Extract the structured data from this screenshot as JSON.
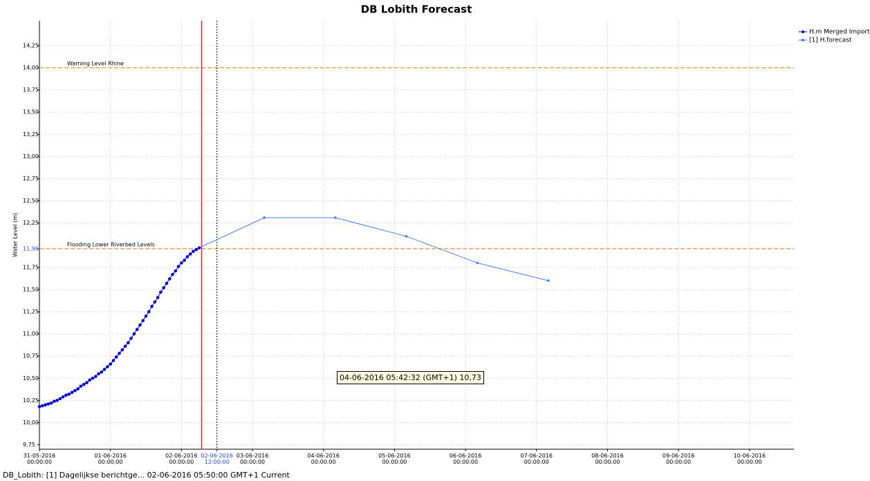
{
  "chart_data": {
    "type": "line",
    "title": "DB Lobith Forecast",
    "y_label": "Water Level (m)",
    "grid": true,
    "legend": "outside-top-right",
    "xlim": [
      "2016-05-31T00:00",
      "2016-06-10T15:00"
    ],
    "ylim": [
      9.7,
      14.53
    ],
    "xticks": [
      {
        "value": "2016-05-31T00:00",
        "label": "31-05-2016 00:00:00"
      },
      {
        "value": "2016-06-01T00:00",
        "label": "01-06-2016 00:00:00"
      },
      {
        "value": "2016-06-02T00:00",
        "label": "02-06-2016 00:00:00"
      },
      {
        "value": "2016-06-02T12:00",
        "label": "02-06-2016 12:00:00",
        "color": "#1f4fd8"
      },
      {
        "value": "2016-06-03T00:00",
        "label": "03-06-2016 00:00:00"
      },
      {
        "value": "2016-06-04T00:00",
        "label": "04-06-2016 00:00:00"
      },
      {
        "value": "2016-06-05T00:00",
        "label": "05-06-2016 00:00:00"
      },
      {
        "value": "2016-06-06T00:00",
        "label": "06-06-2016 00:00:00"
      },
      {
        "value": "2016-06-07T00:00",
        "label": "07-06-2016 00:00:00"
      },
      {
        "value": "2016-06-08T00:00",
        "label": "08-06-2016 00:00:00"
      },
      {
        "value": "2016-06-09T00:00",
        "label": "09-06-2016 00:00:00"
      },
      {
        "value": "2016-06-10T00:00",
        "label": "10-06-2016 00:00:00"
      }
    ],
    "yticks": [
      {
        "value": 9.75,
        "label": "9,75"
      },
      {
        "value": 10.0,
        "label": "10,00"
      },
      {
        "value": 10.25,
        "label": "10,25"
      },
      {
        "value": 10.5,
        "label": "10,50"
      },
      {
        "value": 10.75,
        "label": "10,75"
      },
      {
        "value": 11.0,
        "label": "11,00"
      },
      {
        "value": 11.25,
        "label": "11,25"
      },
      {
        "value": 11.5,
        "label": "11,50"
      },
      {
        "value": 11.75,
        "label": "11,75"
      },
      {
        "value": 11.96,
        "label": "11,96",
        "color": "#1f4fd8"
      },
      {
        "value": 12.25,
        "label": "12,25"
      },
      {
        "value": 12.5,
        "label": "12,50"
      },
      {
        "value": 12.75,
        "label": "12,75"
      },
      {
        "value": 13.0,
        "label": "13,00"
      },
      {
        "value": 13.25,
        "label": "13,25"
      },
      {
        "value": 13.5,
        "label": "13,50"
      },
      {
        "value": 13.75,
        "label": "13,75"
      },
      {
        "value": 14.0,
        "label": "14,00"
      },
      {
        "value": 14.25,
        "label": "14,25"
      }
    ],
    "series": [
      {
        "name": "H.m  Merged Import",
        "color": "#0000cc",
        "x": [
          "2016-05-31T00:00",
          "2016-05-31T01:00",
          "2016-05-31T02:00",
          "2016-05-31T03:00",
          "2016-05-31T04:00",
          "2016-05-31T05:00",
          "2016-05-31T06:00",
          "2016-05-31T07:00",
          "2016-05-31T08:00",
          "2016-05-31T09:00",
          "2016-05-31T10:00",
          "2016-05-31T11:00",
          "2016-05-31T12:00",
          "2016-05-31T13:00",
          "2016-05-31T14:00",
          "2016-05-31T15:00",
          "2016-05-31T16:00",
          "2016-05-31T17:00",
          "2016-05-31T18:00",
          "2016-05-31T19:00",
          "2016-05-31T20:00",
          "2016-05-31T21:00",
          "2016-05-31T22:00",
          "2016-05-31T23:00",
          "2016-06-01T00:00",
          "2016-06-01T01:00",
          "2016-06-01T02:00",
          "2016-06-01T03:00",
          "2016-06-01T04:00",
          "2016-06-01T05:00",
          "2016-06-01T06:00",
          "2016-06-01T07:00",
          "2016-06-01T08:00",
          "2016-06-01T09:00",
          "2016-06-01T10:00",
          "2016-06-01T11:00",
          "2016-06-01T12:00",
          "2016-06-01T13:00",
          "2016-06-01T14:00",
          "2016-06-01T15:00",
          "2016-06-01T16:00",
          "2016-06-01T17:00",
          "2016-06-01T18:00",
          "2016-06-01T19:00",
          "2016-06-01T20:00",
          "2016-06-01T21:00",
          "2016-06-01T22:00",
          "2016-06-01T23:00",
          "2016-06-02T00:00",
          "2016-06-02T01:00",
          "2016-06-02T02:00",
          "2016-06-02T03:00",
          "2016-06-02T04:00",
          "2016-06-02T05:00",
          "2016-06-02T06:00"
        ],
        "values": [
          10.18,
          10.19,
          10.2,
          10.21,
          10.22,
          10.24,
          10.25,
          10.27,
          10.29,
          10.31,
          10.32,
          10.34,
          10.36,
          10.38,
          10.41,
          10.43,
          10.45,
          10.48,
          10.5,
          10.52,
          10.55,
          10.57,
          10.6,
          10.63,
          10.66,
          10.7,
          10.74,
          10.78,
          10.82,
          10.86,
          10.9,
          10.95,
          11.0,
          11.05,
          11.1,
          11.15,
          11.2,
          11.25,
          11.31,
          11.36,
          11.41,
          11.47,
          11.52,
          11.57,
          11.62,
          11.67,
          11.71,
          11.76,
          11.8,
          11.83,
          11.87,
          11.9,
          11.93,
          11.95,
          11.97
        ]
      },
      {
        "name": "[1] H.forecast",
        "color": "#4a7ee8",
        "x": [
          "2016-06-02T06:00",
          "2016-06-03T04:00",
          "2016-06-04T04:00",
          "2016-06-05T04:00",
          "2016-06-06T04:00",
          "2016-06-07T04:00"
        ],
        "values": [
          11.97,
          12.31,
          12.31,
          12.1,
          11.8,
          11.6
        ]
      }
    ],
    "reference_lines": [
      {
        "label": "Warning Level Rhine",
        "value": 14.0,
        "color": "#f0a050"
      },
      {
        "label": "Flooding Lower Riverbed Levels",
        "value": 11.96,
        "color": "#f0a050"
      }
    ],
    "markers": [
      {
        "x": "2016-06-02T06:50",
        "color": "#ff2020",
        "style": "solid"
      },
      {
        "x": "2016-06-02T12:00",
        "color": "#000000",
        "style": "dotted"
      }
    ],
    "annotation": "04-06-2016 05:42:32 (GMT+1) 10,73"
  },
  "status_bar": "DB_Lobith: [1] Dagelijkse berichtge... 02-06-2016 05:50:00 GMT+1 Current"
}
